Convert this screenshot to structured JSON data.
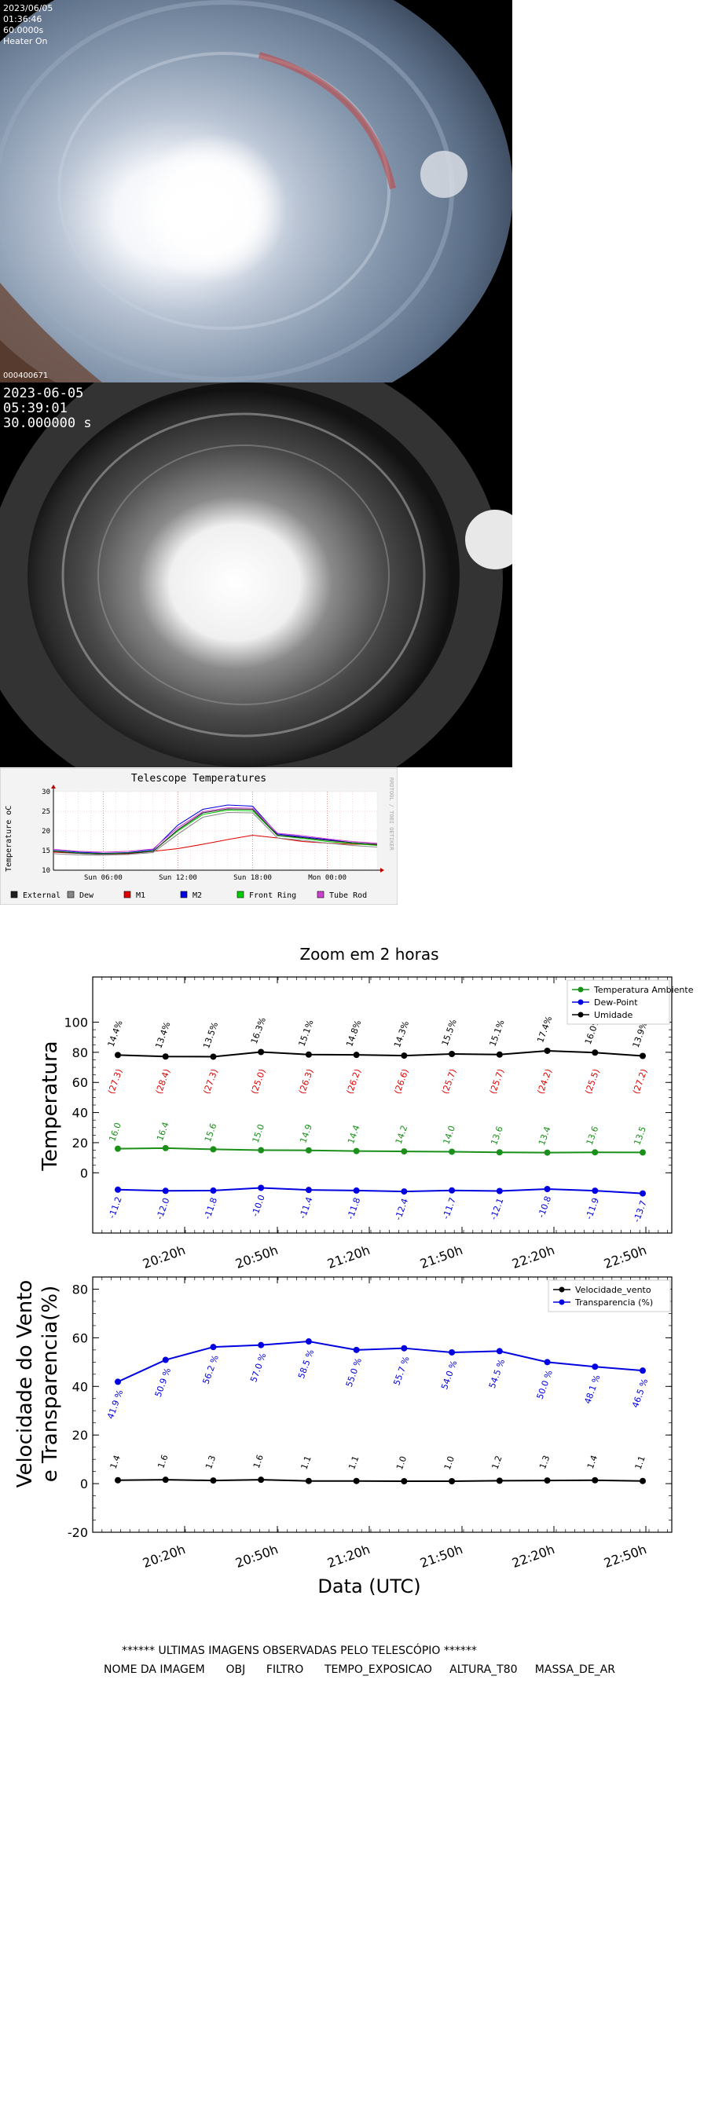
{
  "camera1": {
    "date": "2023/06/05",
    "time": "01:36:46",
    "exposure": "60.0000s",
    "heater": "Heater On",
    "image_id": "000400671"
  },
  "camera2": {
    "date": "2023-06-05",
    "time": "05:39:01",
    "exposure": "30.000000 s"
  },
  "telescope_chart": {
    "title": "Telescope Temperatures",
    "ylabel": "Temperature oC",
    "side_label": "RRDTOOL / TOBI OETIKER",
    "yticks": [
      "10",
      "15",
      "20",
      "25",
      "30"
    ],
    "xticks": [
      "Sun 06:00",
      "Sun 12:00",
      "Sun 18:00",
      "Mon 00:00"
    ],
    "legend": [
      {
        "label": "External",
        "color": "#202020"
      },
      {
        "label": "Dew",
        "color": "#888888"
      },
      {
        "label": "M1",
        "color": "#e00000"
      },
      {
        "label": "M2",
        "color": "#0000e0"
      },
      {
        "label": "Front Ring",
        "color": "#00d000"
      },
      {
        "label": "Tube Rod",
        "color": "#d040d0"
      }
    ]
  },
  "chart_data": [
    {
      "type": "line",
      "title": "Telescope Temperatures",
      "ylabel": "Temperature oC",
      "ylim": [
        10,
        30
      ],
      "x": [
        0,
        2,
        4,
        6,
        8,
        10,
        12,
        14,
        16,
        18,
        20,
        22,
        24,
        26
      ],
      "xtick_positions": {
        "Sun 06:00": 4,
        "Sun 12:00": 10,
        "Sun 18:00": 16,
        "Mon 00:00": 22
      },
      "series": [
        {
          "name": "M1",
          "values": [
            14.6,
            14.3,
            14.1,
            14.2,
            14.8,
            15.5,
            16.6,
            17.8,
            18.9,
            18.2,
            17.3,
            16.9,
            16.6,
            16.5
          ]
        },
        {
          "name": "M2",
          "values": [
            15.2,
            14.6,
            14.3,
            14.5,
            15.2,
            21.5,
            25.5,
            26.6,
            26.3,
            19.2,
            18.5,
            17.8,
            17.0,
            16.6
          ]
        },
        {
          "name": "Front Ring",
          "values": [
            14.9,
            14.4,
            14.2,
            14.4,
            14.9,
            20.0,
            24.2,
            25.3,
            25.1,
            18.8,
            18.1,
            17.3,
            16.8,
            16.3
          ]
        },
        {
          "name": "Tube Rod",
          "values": [
            15.3,
            14.8,
            14.6,
            14.8,
            15.4,
            20.8,
            24.9,
            25.9,
            25.8,
            19.4,
            18.8,
            18.0,
            17.3,
            16.9
          ]
        },
        {
          "name": "Dew",
          "values": [
            14.2,
            13.9,
            13.8,
            14.0,
            14.5,
            19.2,
            23.5,
            24.7,
            24.6,
            18.2,
            17.6,
            16.9,
            16.3,
            15.9
          ]
        },
        {
          "name": "External",
          "values": [
            14.8,
            14.3,
            14.1,
            14.3,
            14.8,
            20.3,
            24.6,
            25.6,
            25.5,
            18.9,
            18.3,
            17.6,
            17.0,
            16.6
          ]
        }
      ]
    },
    {
      "type": "line",
      "title": "Zoom em 2 horas",
      "ylabel": "Temperatura",
      "ylim": [
        -40,
        130
      ],
      "x": [
        "20:09",
        "20:19",
        "20:29",
        "20:39",
        "20:49",
        "20:59",
        "21:09",
        "21:19",
        "21:29",
        "21:39",
        "21:49",
        "21:59"
      ],
      "xticks": [
        "20:20h",
        "20:50h",
        "21:20h",
        "21:50h",
        "22:20h",
        "22:50h"
      ],
      "yticks": [
        0,
        20,
        40,
        60,
        80,
        100
      ],
      "series": [
        {
          "name": "Temperatura Ambiente",
          "values": [
            16.0,
            16.4,
            15.6,
            15.0,
            14.9,
            14.4,
            14.2,
            14.0,
            13.6,
            13.4,
            13.6,
            13.5
          ]
        },
        {
          "name": "Dew-Point",
          "values": [
            -11.2,
            -12.0,
            -11.8,
            -10.0,
            -11.4,
            -11.8,
            -12.4,
            -11.7,
            -12.1,
            -10.8,
            -11.9,
            -13.7
          ]
        },
        {
          "name": "Umidade",
          "values": [
            78.2,
            77.2,
            77.1,
            80.2,
            78.5,
            78.3,
            77.8,
            78.9,
            78.5,
            81.0,
            79.8,
            77.6
          ]
        }
      ],
      "labels_temperature": [
        "16.0",
        "16.4",
        "15.6",
        "15.0",
        "14.9",
        "14.4",
        "14.2",
        "14.0",
        "13.6",
        "13.4",
        "13.6",
        "13.5"
      ],
      "labels_paren": [
        "(27.3)",
        "(28.4)",
        "(27.3)",
        "(25.0)",
        "(26.3)",
        "(26.2)",
        "(26.6)",
        "(25.7)",
        "(25.7)",
        "(24.2)",
        "(25.5)",
        "(27.2)"
      ],
      "labels_dew": [
        "-11.2",
        "-12.0",
        "-11.8",
        "-10.0",
        "-11.4",
        "-11.8",
        "-12.4",
        "-11.7",
        "-12.1",
        "-10.8",
        "-11.9",
        "-13.7"
      ],
      "labels_humidity": [
        "14.4%",
        "13.4%",
        "13.5%",
        "16.3%",
        "15.1%",
        "14.8%",
        "14.3%",
        "15.5%",
        "15.1%",
        "17.4%",
        "16.0%",
        "13.9%"
      ]
    },
    {
      "type": "line",
      "ylabel": "Velocidade do Vento\ne Transparencia(%)",
      "xlabel": "Data (UTC)",
      "ylim": [
        -20,
        85
      ],
      "x": [
        "20:09",
        "20:19",
        "20:29",
        "20:39",
        "20:49",
        "20:59",
        "21:09",
        "21:19",
        "21:29",
        "21:39",
        "21:49",
        "21:59"
      ],
      "xticks": [
        "20:20h",
        "20:50h",
        "21:20h",
        "21:50h",
        "22:20h",
        "22:50h"
      ],
      "yticks": [
        -20,
        0,
        20,
        40,
        60,
        80
      ],
      "series": [
        {
          "name": "Velocidade_vento",
          "values": [
            1.4,
            1.6,
            1.3,
            1.6,
            1.1,
            1.1,
            1.0,
            1.0,
            1.2,
            1.3,
            1.4,
            1.1
          ]
        },
        {
          "name": "Transparencia (%)",
          "values": [
            41.9,
            50.9,
            56.2,
            57.0,
            58.5,
            55.0,
            55.7,
            54.0,
            54.5,
            50.0,
            48.1,
            46.5
          ]
        }
      ],
      "labels_wind": [
        "1.4",
        "1.6",
        "1.3",
        "1.6",
        "1.1",
        "1.1",
        "1.0",
        "1.0",
        "1.2",
        "1.3",
        "1.4",
        "1.1"
      ],
      "labels_transparency": [
        "41.9 %",
        "50.9 %",
        "56.2 %",
        "57.0 %",
        "58.5 %",
        "55.0 %",
        "55.7 %",
        "54.0 %",
        "54.5 %",
        "50.0 %",
        "48.1 %",
        "46.5 %"
      ]
    }
  ],
  "zoom_colors": {
    "temp": "#1a8f1a",
    "dew": "#0000e0",
    "hum": "#000000",
    "paren": "#e00000",
    "wind": "#000000",
    "transp": "#0000e0"
  },
  "footer": {
    "line1": "****** ULTIMAS IMAGENS OBSERVADAS PELO TELESCÓPIO ******",
    "line2": "NOME DA IMAGEM      OBJ      FILTRO      TEMPO_EXPOSICAO     ALTURA_T80     MASSA_DE_AR"
  }
}
